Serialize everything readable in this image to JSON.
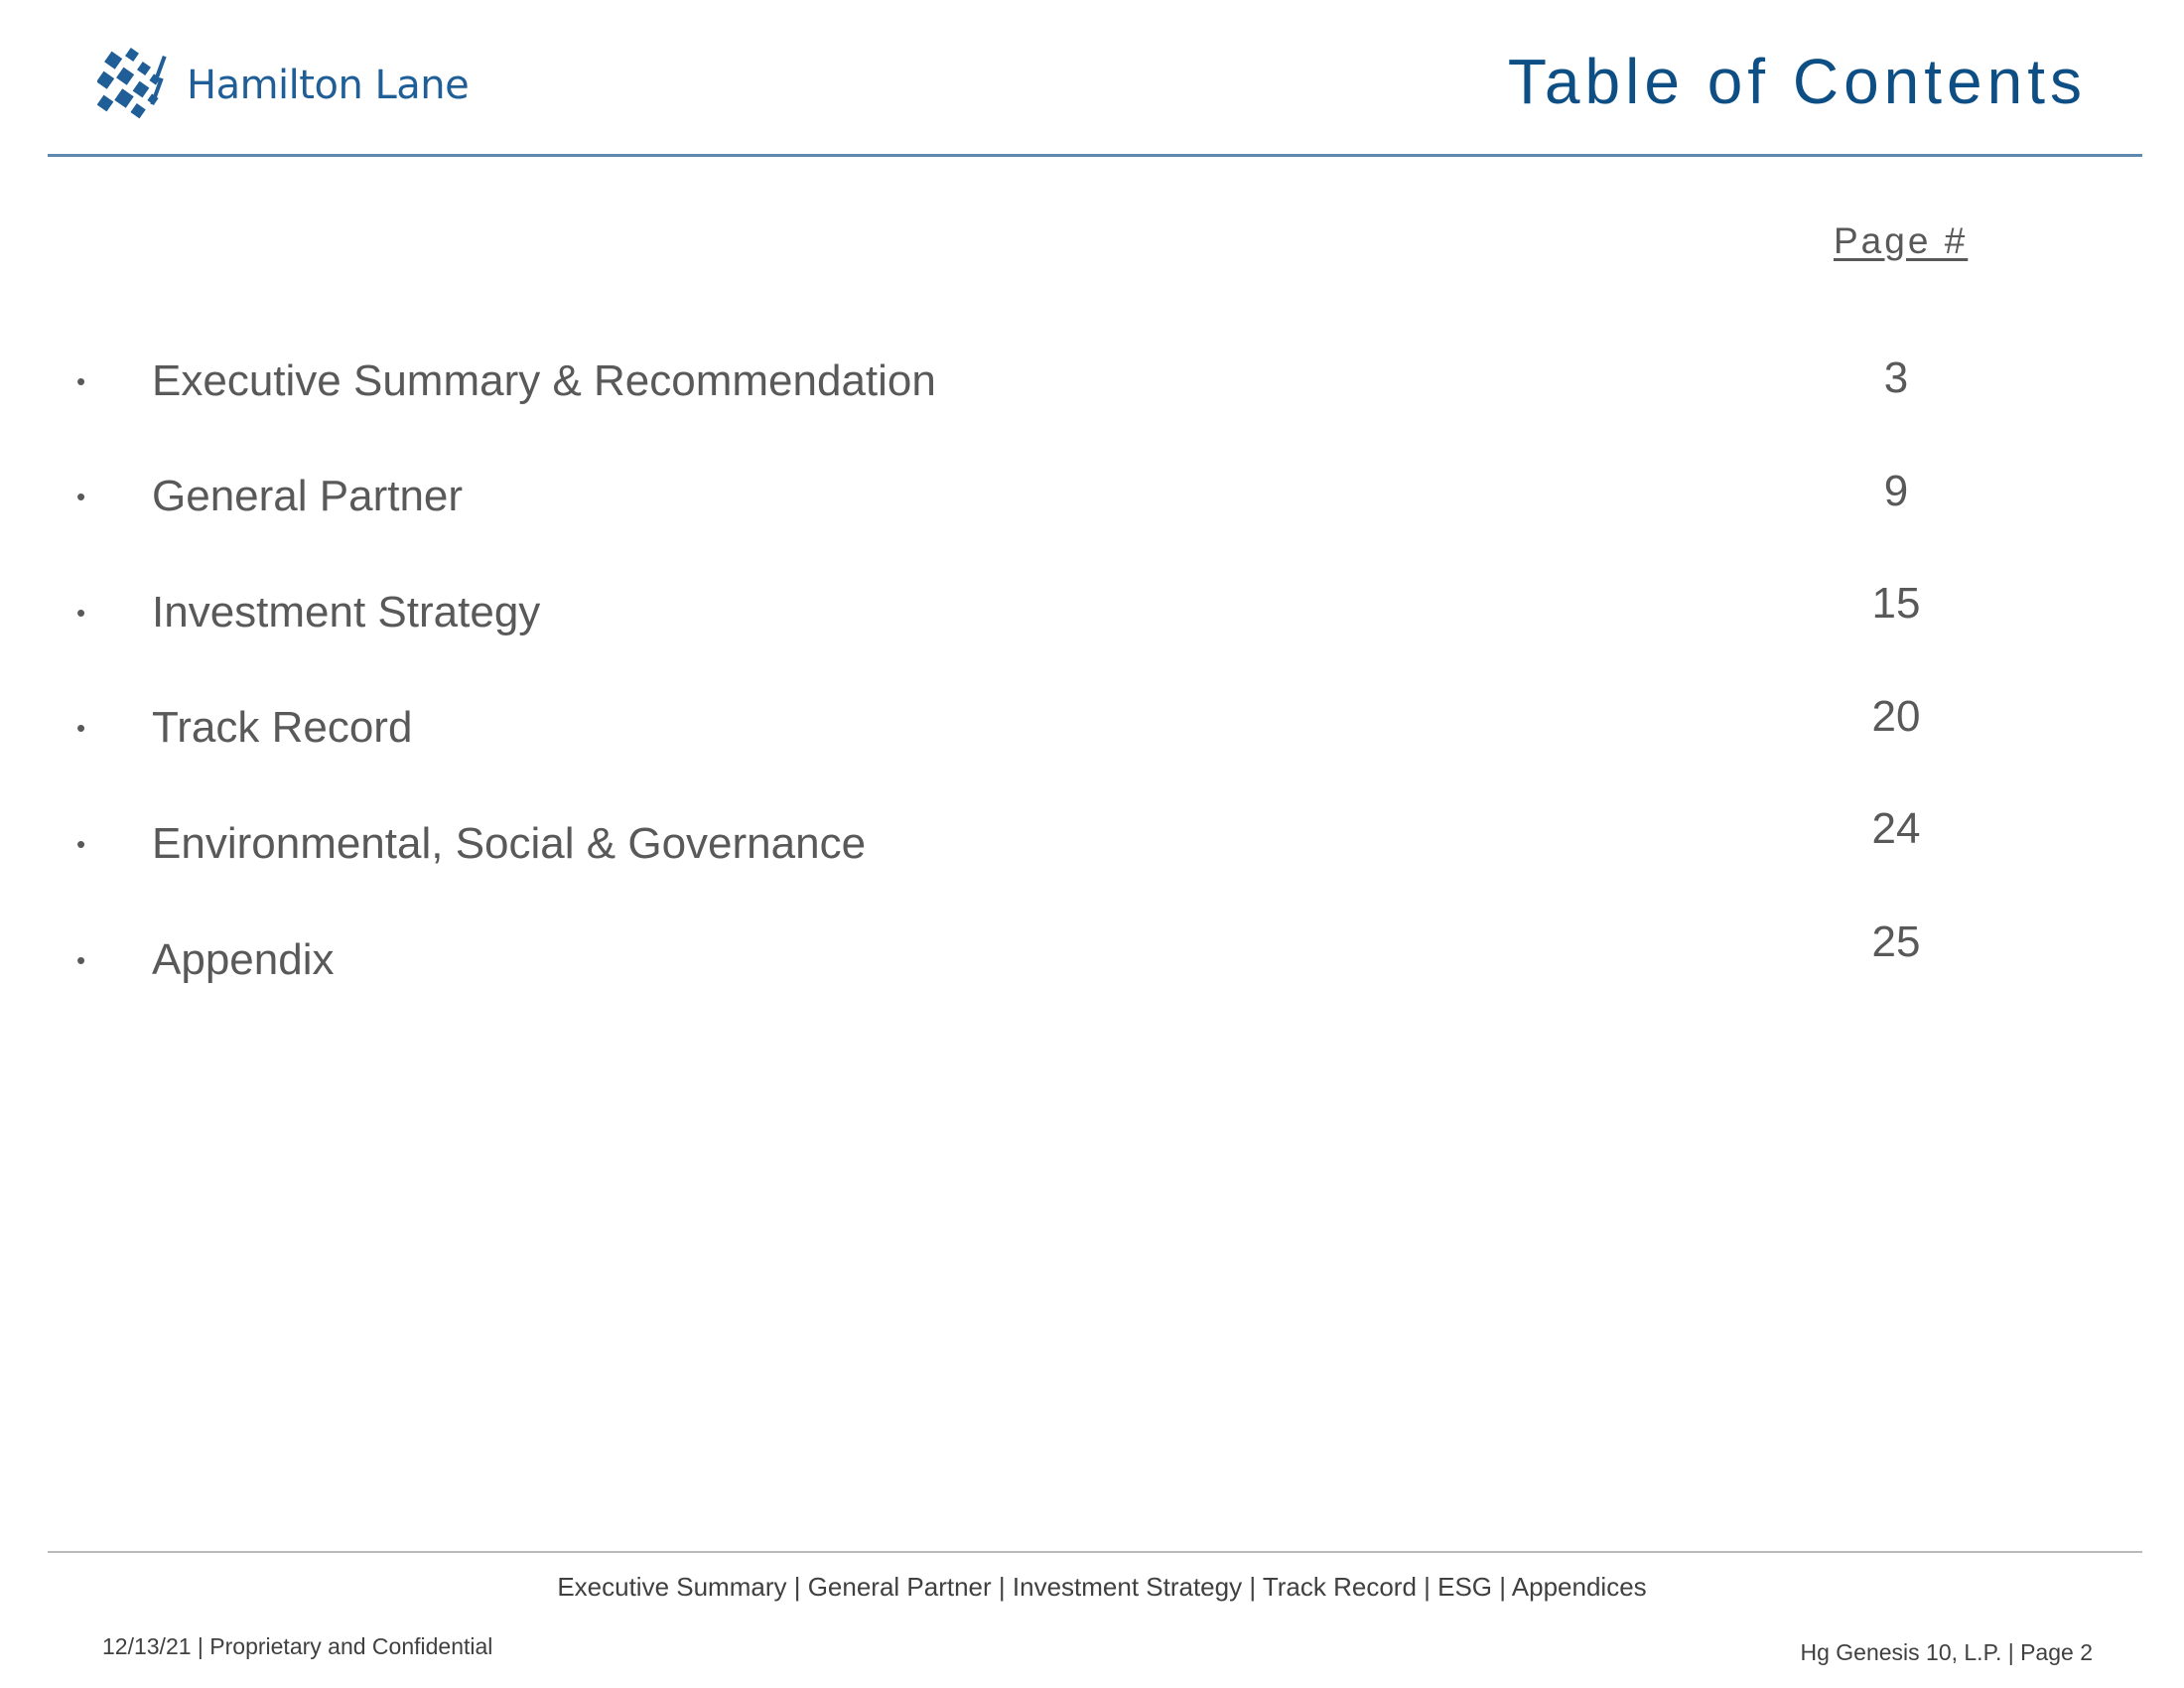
{
  "header": {
    "logo_text": "Hamilton Lane",
    "title": "Table of Contents"
  },
  "toc": {
    "page_column_header": "Page #",
    "items": [
      {
        "label": "Executive Summary & Recommendation",
        "page": "3"
      },
      {
        "label": "General Partner",
        "page": "9"
      },
      {
        "label": "Investment Strategy",
        "page": "15"
      },
      {
        "label": "Track Record",
        "page": "20"
      },
      {
        "label": "Environmental, Social & Governance",
        "page": "24"
      },
      {
        "label": "Appendix",
        "page": "25"
      }
    ],
    "bullet": "•"
  },
  "footer": {
    "nav": "Executive Summary | General Partner | Investment Strategy | Track Record | ESG | Appendices",
    "left": "12/13/21 | Proprietary and Confidential",
    "right": "Hg Genesis 10, L.P. | Page 2"
  },
  "colors": {
    "brand_blue": "#0d4f84",
    "rule_blue": "#5f88ad",
    "body_text": "#595959"
  }
}
